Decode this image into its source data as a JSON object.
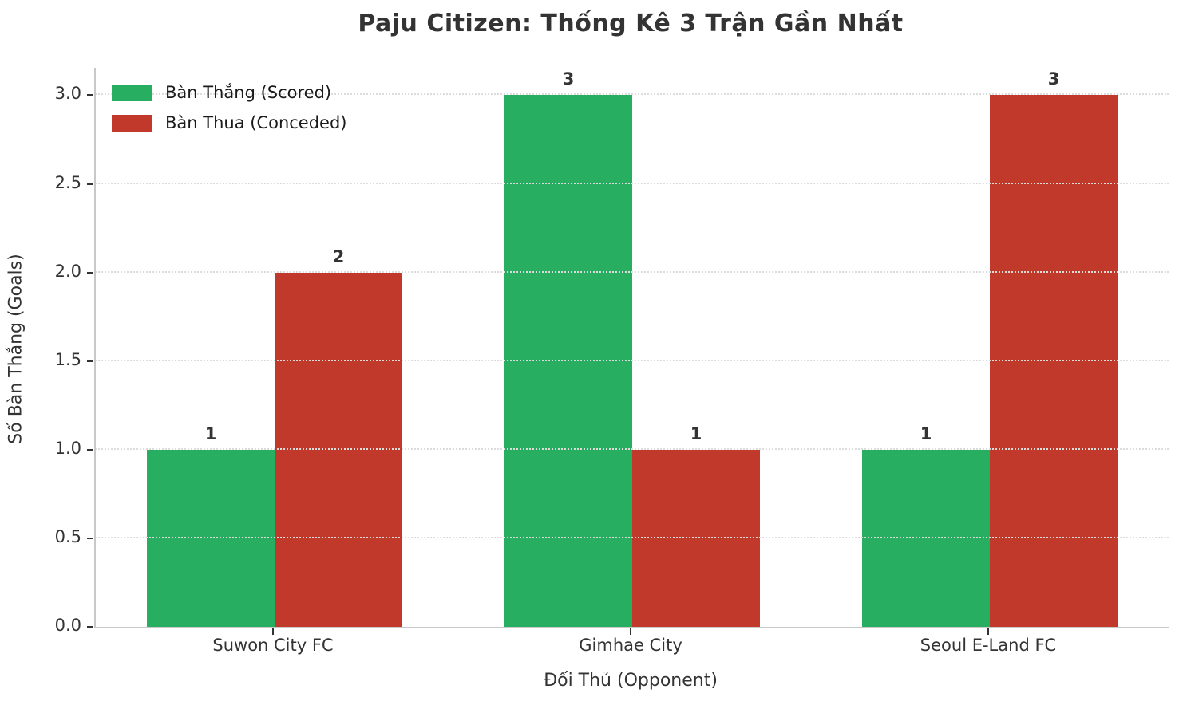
{
  "chart_data": {
    "type": "bar",
    "title": "Paju Citizen: Thống Kê 3 Trận Gần Nhất",
    "xlabel": "Đối Thủ (Opponent)",
    "ylabel": "Số Bàn Thắng (Goals)",
    "categories": [
      "Suwon City FC",
      "Gimhae City",
      "Seoul E-Land FC"
    ],
    "series": [
      {
        "name": "Bàn Thắng (Scored)",
        "color": "#27ae60",
        "values": [
          1,
          3,
          1
        ]
      },
      {
        "name": "Bàn Thua (Conceded)",
        "color": "#c0392b",
        "values": [
          2,
          1,
          3
        ]
      }
    ],
    "ylim": [
      0,
      3.155
    ],
    "yticks": [
      {
        "value": 0.0,
        "label": "0.0"
      },
      {
        "value": 0.5,
        "label": "0.5"
      },
      {
        "value": 1.0,
        "label": "1.0"
      },
      {
        "value": 1.5,
        "label": "1.5"
      },
      {
        "value": 2.0,
        "label": "2.0"
      },
      {
        "value": 2.5,
        "label": "2.5"
      },
      {
        "value": 3.0,
        "label": "3.0"
      }
    ],
    "grid": {
      "axis": "y",
      "style": "dotted",
      "color": "#dcdcdc",
      "above_bars": true
    },
    "legend": {
      "position": "upper-left",
      "frame": false
    },
    "bar_labels_shown": true
  },
  "style_colors": {
    "text": "#333333",
    "spine": "#c8c8c8",
    "background": "#ffffff"
  }
}
